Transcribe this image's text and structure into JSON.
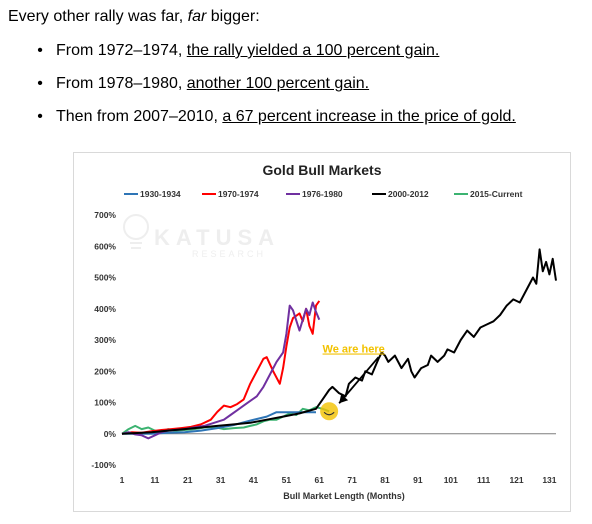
{
  "intro": {
    "before": "Every other rally was far, ",
    "emphasis": "far",
    "after": " bigger:"
  },
  "bullets": [
    {
      "prefix": "From 1972–1974, ",
      "link": "the rally yielded a 100 percent gain."
    },
    {
      "prefix": "From 1978–1980, ",
      "link": "another 100 percent gain."
    },
    {
      "prefix": "Then from 2007–2010, ",
      "link": "a 67 percent increase in the price of gold."
    }
  ],
  "chart_data": {
    "type": "line",
    "title": "Gold Bull Markets",
    "xlabel": "Bull Market Length (Months)",
    "ylabel": "",
    "xlim": [
      1,
      133
    ],
    "ylim": [
      -100,
      700
    ],
    "x_ticks": [
      1,
      11,
      21,
      31,
      41,
      51,
      61,
      71,
      81,
      91,
      101,
      111,
      121,
      131
    ],
    "y_ticks": [
      -100,
      0,
      100,
      200,
      300,
      400,
      500,
      600,
      700
    ],
    "y_tick_labels": [
      "-100%",
      "0%",
      "100%",
      "200%",
      "300%",
      "400%",
      "500%",
      "600%",
      "700%"
    ],
    "grid": false,
    "legend_position": "top",
    "watermark": {
      "brand": "KATUSA",
      "sub": "RESEARCH"
    },
    "annotation": {
      "text": "We are here",
      "x": 64,
      "y": 72,
      "color": "#f2c200"
    },
    "series": [
      {
        "name": "1930-1934",
        "color": "#2e75b6",
        "x": [
          1,
          5,
          10,
          15,
          20,
          25,
          30,
          35,
          40,
          45,
          48,
          50,
          55,
          60
        ],
        "y": [
          0,
          0,
          0,
          3,
          5,
          10,
          18,
          28,
          42,
          55,
          69,
          69,
          69,
          69
        ]
      },
      {
        "name": "1970-1974",
        "color": "#ff0000",
        "x": [
          1,
          4,
          7,
          10,
          13,
          16,
          19,
          22,
          25,
          28,
          30,
          32,
          34,
          36,
          38,
          40,
          42,
          44,
          45,
          47,
          49,
          50,
          51,
          52,
          53,
          55,
          56,
          57,
          58,
          59,
          60,
          61
        ],
        "y": [
          0,
          5,
          3,
          8,
          12,
          15,
          18,
          22,
          30,
          45,
          70,
          90,
          85,
          95,
          110,
          160,
          200,
          240,
          245,
          200,
          160,
          210,
          280,
          340,
          370,
          385,
          360,
          400,
          345,
          320,
          410,
          425
        ]
      },
      {
        "name": "1976-1980",
        "color": "#7030a0",
        "x": [
          1,
          3,
          5,
          7,
          9,
          11,
          13,
          15,
          17,
          20,
          23,
          26,
          29,
          32,
          34,
          36,
          38,
          40,
          42,
          44,
          46,
          48,
          50,
          51,
          52,
          53,
          55,
          56,
          57,
          58,
          59,
          60,
          61
        ],
        "y": [
          0,
          5,
          -2,
          -5,
          -15,
          -5,
          5,
          10,
          12,
          15,
          20,
          25,
          35,
          45,
          60,
          75,
          90,
          105,
          120,
          150,
          190,
          230,
          260,
          320,
          410,
          395,
          330,
          365,
          400,
          380,
          420,
          390,
          365
        ]
      },
      {
        "name": "2000-2012",
        "color": "#000000",
        "x": [
          1,
          5,
          10,
          15,
          20,
          25,
          30,
          35,
          40,
          45,
          50,
          55,
          60,
          62,
          64,
          65,
          67,
          69,
          70,
          72,
          74,
          75,
          77,
          79,
          80,
          81,
          82,
          84,
          85,
          86,
          88,
          89,
          90,
          92,
          94,
          95,
          97,
          99,
          100,
          102,
          104,
          106,
          108,
          110,
          112,
          114,
          116,
          118,
          120,
          122,
          124,
          126,
          127,
          128,
          129,
          130,
          131,
          132,
          133
        ],
        "y": [
          0,
          2,
          5,
          10,
          15,
          20,
          25,
          30,
          35,
          45,
          55,
          65,
          80,
          110,
          140,
          150,
          130,
          120,
          160,
          180,
          170,
          200,
          190,
          240,
          260,
          250,
          230,
          250,
          230,
          210,
          240,
          200,
          180,
          210,
          220,
          250,
          230,
          250,
          270,
          260,
          300,
          330,
          310,
          340,
          350,
          360,
          380,
          410,
          430,
          420,
          460,
          500,
          480,
          590,
          520,
          550,
          510,
          560,
          490
        ]
      },
      {
        "name": "2015-Current",
        "color": "#3cb371",
        "x": [
          1,
          3,
          5,
          7,
          9,
          11,
          13,
          15,
          17,
          20,
          23,
          26,
          29,
          32,
          35,
          38,
          40,
          42,
          44,
          46,
          48,
          50,
          52,
          54,
          56,
          58,
          60,
          62,
          64
        ],
        "y": [
          0,
          15,
          25,
          15,
          20,
          10,
          5,
          15,
          10,
          12,
          15,
          20,
          22,
          15,
          18,
          20,
          25,
          30,
          40,
          45,
          45,
          55,
          65,
          60,
          80,
          75,
          85,
          80,
          72
        ]
      }
    ]
  }
}
